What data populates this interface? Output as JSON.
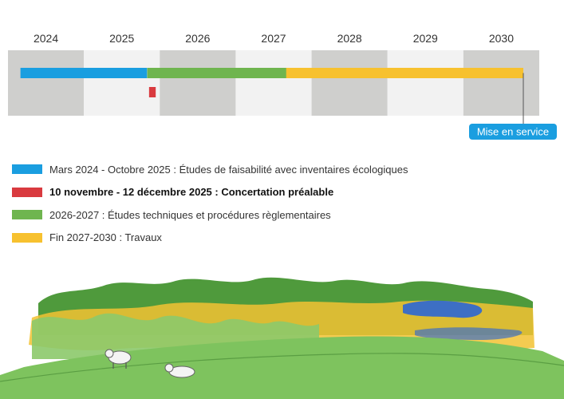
{
  "chart_data": {
    "type": "gantt",
    "years": [
      "2024",
      "2025",
      "2026",
      "2027",
      "2028",
      "2029",
      "2030"
    ],
    "x_range": [
      "2024-01-01",
      "2031-01-01"
    ],
    "tasks": [
      {
        "start": "2024-03-01",
        "end": "2025-10-31",
        "color": "#1a9ee0",
        "row": 0
      },
      {
        "start": "2025-11-10",
        "end": "2025-12-12",
        "color": "#d93a3f",
        "row": 1
      },
      {
        "start": "2025-11-01",
        "end": "2027-12-31",
        "color": "#6fb54f",
        "row": 0
      },
      {
        "start": "2027-09-01",
        "end": "2030-12-31",
        "color": "#f7c12f",
        "row": 0
      }
    ],
    "milestone": {
      "date": "2030-12-31",
      "label": "Mise en service",
      "color": "#1a9ee0"
    }
  },
  "legend": [
    {
      "label": "Mars 2024 - Octobre 2025 : Études de faisabilité avec inventaires écologiques",
      "color": "#1a9ee0",
      "bold": false
    },
    {
      "label": "10 novembre - 12 décembre 2025 : Concertation préalable",
      "color": "#d93a3f",
      "bold": true
    },
    {
      "label": "2026-2027 : Études techniques et procédures règlementaires",
      "color": "#6fb54f",
      "bold": false
    },
    {
      "label": "Fin 2027-2030 : Travaux",
      "color": "#f7c12f",
      "bold": false
    }
  ],
  "colors": {
    "band_dark": "#cfcfcd",
    "band_light": "#f2f2f2",
    "grass": "#7ec35e",
    "grass_dark": "#5a9e43",
    "trees": "#4f9a3c",
    "trees_light": "#8cc96a",
    "zone_yellow": "#f2c233",
    "water": "#3d6fc4"
  }
}
